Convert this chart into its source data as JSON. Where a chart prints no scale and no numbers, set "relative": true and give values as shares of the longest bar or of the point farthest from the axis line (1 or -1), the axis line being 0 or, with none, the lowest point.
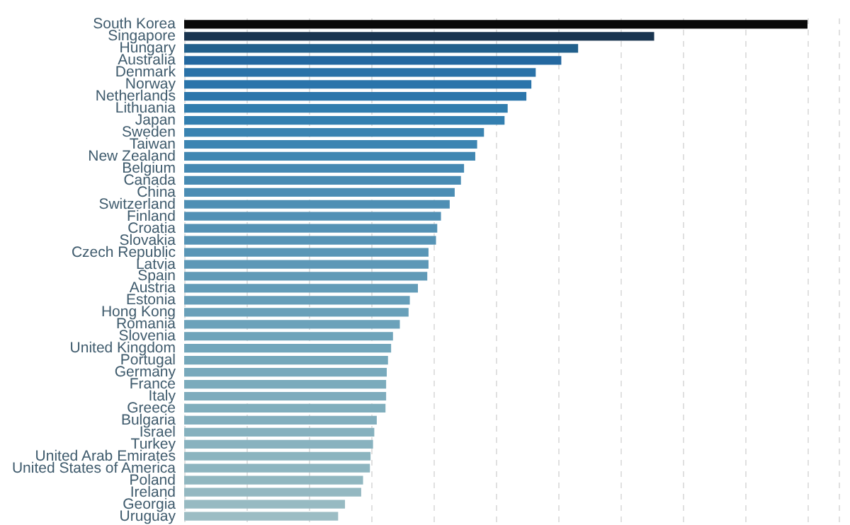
{
  "chart_data": {
    "type": "bar",
    "orientation": "horizontal",
    "relative": true,
    "grid": "x",
    "categories": [
      "South Korea",
      "Singapore",
      "Hungary",
      "Australia",
      "Denmark",
      "Norway",
      "Netherlands",
      "Lithuania",
      "Japan",
      "Sweden",
      "Taiwan",
      "New Zealand",
      "Belgium",
      "Canada",
      "China",
      "Switzerland",
      "Finland",
      "Croatia",
      "Slovakia",
      "Czech Republic",
      "Latvia",
      "Spain",
      "Austria",
      "Estonia",
      "Hong Kong",
      "Romania",
      "Slovenia",
      "United Kingdom",
      "Portugal",
      "Germany",
      "France",
      "Italy",
      "Greece",
      "Bulgaria",
      "Israel",
      "Turkey",
      "United Arab Emirates",
      "United States of America",
      "Poland",
      "Ireland",
      "Georgia",
      "Uruguay"
    ],
    "values": [
      1,
      0.754,
      0.632,
      0.605,
      0.564,
      0.557,
      0.549,
      0.519,
      0.514,
      0.481,
      0.47,
      0.467,
      0.449,
      0.444,
      0.434,
      0.426,
      0.412,
      0.406,
      0.404,
      0.392,
      0.392,
      0.39,
      0.375,
      0.362,
      0.36,
      0.346,
      0.335,
      0.332,
      0.327,
      0.325,
      0.324,
      0.324,
      0.323,
      0.309,
      0.305,
      0.303,
      0.299,
      0.298,
      0.287,
      0.284,
      0.258,
      0.247
    ],
    "colors": [
      "#0a0a0a",
      "#1a3550",
      "#22608c",
      "#2468a0",
      "#2a72a8",
      "#2a74aa",
      "#2c76ab",
      "#317dae",
      "#337fb0",
      "#3a83b1",
      "#3d85b2",
      "#4087b2",
      "#4589b3",
      "#488bb3",
      "#4b8db4",
      "#4e8fb4",
      "#5190b5",
      "#5492b5",
      "#5794b6",
      "#5a96b6",
      "#5d98b7",
      "#609ab7",
      "#639cb8",
      "#669eb9",
      "#69a0b9",
      "#6ca2ba",
      "#6fa4ba",
      "#72a6bb",
      "#75a8bb",
      "#78a9bc",
      "#7babbc",
      "#7eacbd",
      "#80aebd",
      "#83afbe",
      "#86b1be",
      "#88b2bf",
      "#8bb4bf",
      "#8eb5c0",
      "#91b7c0",
      "#94b8c1",
      "#97bac2",
      "#9cbdc4"
    ]
  }
}
